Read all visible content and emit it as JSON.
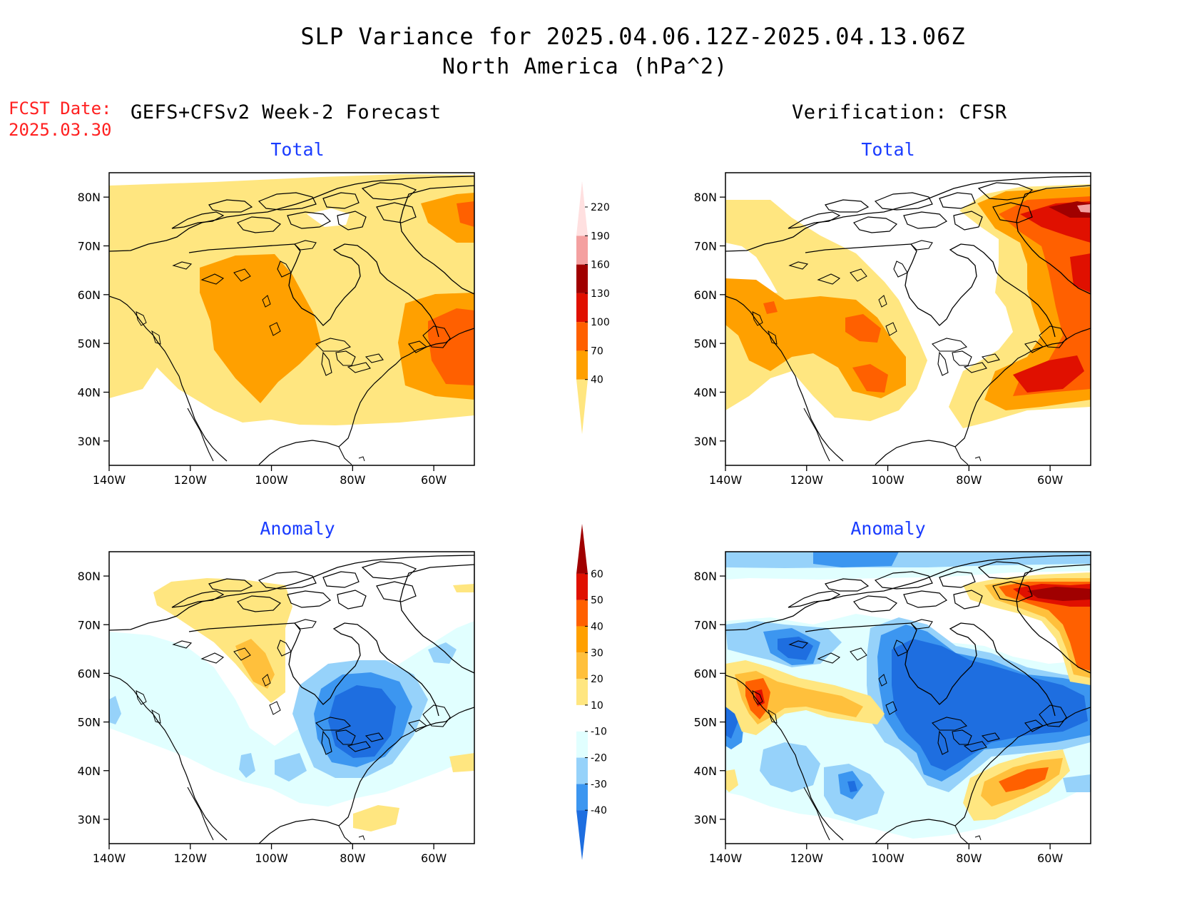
{
  "title_line1": "SLP Variance for 2025.04.06.12Z-2025.04.13.06Z",
  "title_line2": "North America (hPa^2)",
  "fcst_label": "FCST Date:",
  "fcst_date": "2025.03.30",
  "left_header": "GEFS+CFSv2 Week-2 Forecast",
  "right_header": "Verification: CFSR",
  "panel_titles": {
    "top_left": "Total",
    "top_right": "Total",
    "bottom_left": "Anomaly",
    "bottom_right": "Anomaly"
  },
  "lat_ticks": [
    "30N",
    "40N",
    "50N",
    "60N",
    "70N",
    "80N"
  ],
  "lon_ticks": [
    "140W",
    "120W",
    "100W",
    "80W",
    "60W"
  ],
  "total_colorbar": {
    "levels": [
      "40",
      "70",
      "100",
      "130",
      "160",
      "190",
      "220"
    ],
    "colors": [
      "#ffe680",
      "#ffa000",
      "#ff6000",
      "#e01000",
      "#a00000",
      "#f4a0a0",
      "#ffe0e0"
    ]
  },
  "anomaly_colorbar": {
    "levels": [
      "-40",
      "-30",
      "-20",
      "-10",
      "10",
      "20",
      "30",
      "40",
      "50",
      "60"
    ],
    "colors": [
      "#1e6ee0",
      "#3c96f0",
      "#96d2fa",
      "#e1ffff",
      "#ffffff",
      "#ffe680",
      "#ffc03c",
      "#ffa000",
      "#ff6000",
      "#e01000",
      "#a00000"
    ]
  },
  "land_color": "#ffffff",
  "outline_color": "#000000"
}
